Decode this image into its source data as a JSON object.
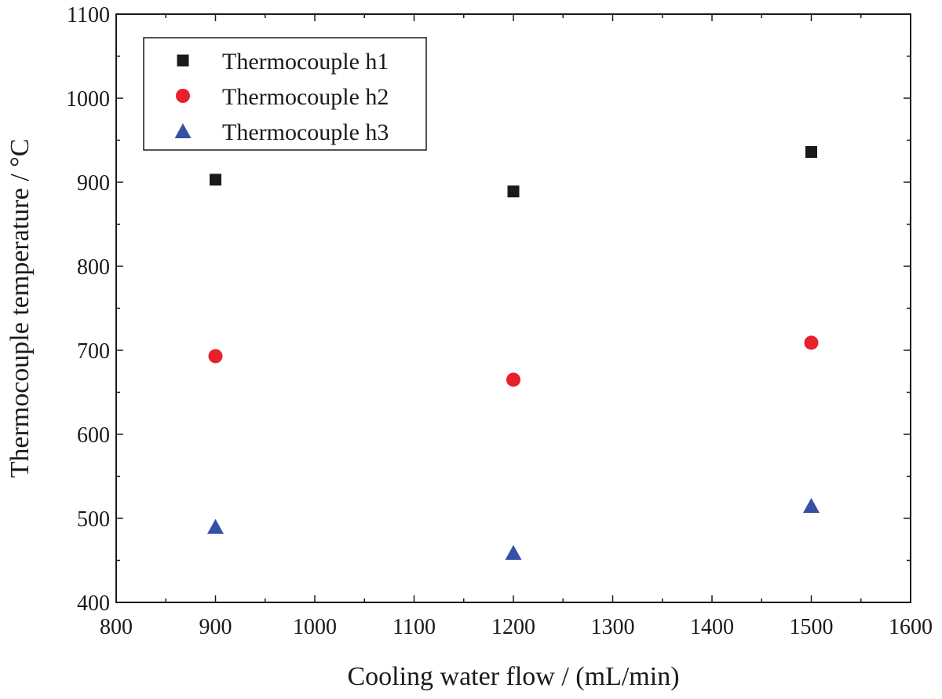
{
  "chart_data": {
    "type": "scatter",
    "title": "",
    "xlabel": "Cooling water flow / (mL/min)",
    "ylabel": "Thermocouple temperature / °C",
    "xlim": [
      800,
      1600
    ],
    "ylim": [
      400,
      1100
    ],
    "xticks": [
      800,
      900,
      1000,
      1100,
      1200,
      1300,
      1400,
      1500,
      1600
    ],
    "yticks": [
      400,
      500,
      600,
      700,
      800,
      900,
      1000,
      1100
    ],
    "x_minor_step": 50,
    "y_minor_step": 50,
    "grid": false,
    "legend_position": "top-left",
    "series": [
      {
        "name": "Thermocouple h1",
        "marker": "square",
        "color": "#1a1a1a",
        "x": [
          900,
          1200,
          1500
        ],
        "y": [
          903,
          889,
          936
        ]
      },
      {
        "name": "Thermocouple h2",
        "marker": "circle",
        "color": "#e8202a",
        "x": [
          900,
          1200,
          1500
        ],
        "y": [
          693,
          665,
          709
        ]
      },
      {
        "name": "Thermocouple h3",
        "marker": "triangle",
        "color": "#3750a6",
        "x": [
          900,
          1200,
          1500
        ],
        "y": [
          490,
          459,
          515
        ]
      }
    ]
  }
}
